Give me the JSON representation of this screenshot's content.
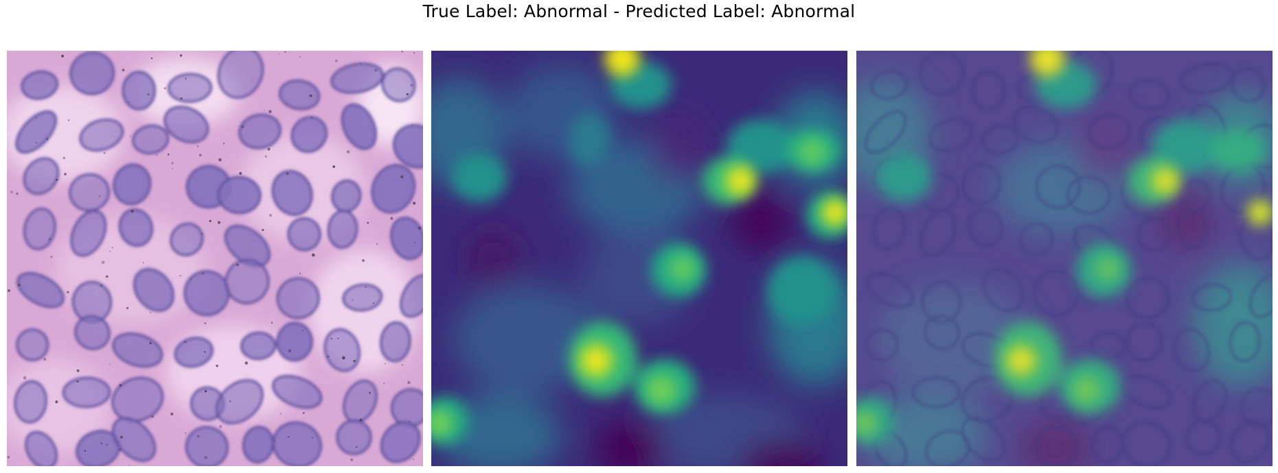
{
  "figure": {
    "title": "True Label: Abnormal - Predicted Label: Abnormal"
  },
  "panels": [
    {
      "id": "histology",
      "description": "H&E stained tissue patch"
    },
    {
      "id": "heatmap",
      "description": "attention heatmap"
    },
    {
      "id": "overlay",
      "description": "heatmap overlaid on tissue patch"
    }
  ],
  "colors": {
    "tissue_background": "#e3b8df",
    "nucleus": "#7d6bb6",
    "heatmap_low": "#440154",
    "heatmap_mid": "#31688e",
    "heatmap_teal": "#21918c",
    "heatmap_green": "#5ec962",
    "heatmap_high": "#fde725"
  }
}
